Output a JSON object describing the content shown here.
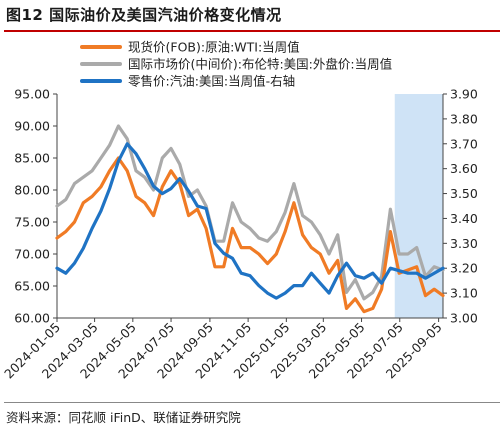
{
  "title": "图12  国际油价及美国汽油价格变化情况",
  "source": "资料来源：同花顺 iFinD、联储证券研究院",
  "chart_data": {
    "type": "line",
    "title": "图12  国际油价及美国汽油价格变化情况",
    "x_tick_labels": [
      "2024-01-05",
      "2024-03-05",
      "2024-05-05",
      "2024-07-05",
      "2024-09-05",
      "2024-11-05",
      "2025-01-05",
      "2025-03-05",
      "2025-05-05",
      "2025-07-05",
      "2025-09-05"
    ],
    "x_start": "2024-01-05",
    "x_end": "2025-09-12",
    "y_left": {
      "ylim": [
        60,
        95
      ],
      "ticks": [
        "60.00",
        "65.00",
        "70.00",
        "75.00",
        "80.00",
        "85.00",
        "90.00",
        "95.00"
      ]
    },
    "y_right": {
      "ylim": [
        3.0,
        3.9
      ],
      "ticks": [
        "3.00",
        "3.10",
        "3.20",
        "3.30",
        "3.40",
        "3.50",
        "3.60",
        "3.70",
        "3.80",
        "3.90"
      ]
    },
    "shaded_range": [
      "2025-06-27",
      "2025-09-12"
    ],
    "shade_color": "#cfe3f6",
    "legend_position": "top-left",
    "series": [
      {
        "name": "现货价(FOB):原油:WTI:当周值",
        "axis": "left",
        "color": "#f07b25",
        "points": [
          [
            "2024-01-05",
            72.5
          ],
          [
            "2024-01-19",
            73.5
          ],
          [
            "2024-02-02",
            75
          ],
          [
            "2024-02-16",
            78
          ],
          [
            "2024-03-01",
            79
          ],
          [
            "2024-03-15",
            80.5
          ],
          [
            "2024-03-29",
            83
          ],
          [
            "2024-04-12",
            85
          ],
          [
            "2024-04-26",
            83
          ],
          [
            "2024-05-10",
            79
          ],
          [
            "2024-05-24",
            78
          ],
          [
            "2024-06-07",
            76
          ],
          [
            "2024-06-21",
            80.5
          ],
          [
            "2024-07-05",
            83
          ],
          [
            "2024-07-19",
            81
          ],
          [
            "2024-08-02",
            76
          ],
          [
            "2024-08-16",
            77
          ],
          [
            "2024-08-30",
            74
          ],
          [
            "2024-09-13",
            68
          ],
          [
            "2024-09-27",
            68
          ],
          [
            "2024-10-11",
            74
          ],
          [
            "2024-10-25",
            71
          ],
          [
            "2024-11-08",
            71
          ],
          [
            "2024-11-22",
            70
          ],
          [
            "2024-12-06",
            68.5
          ],
          [
            "2024-12-20",
            70
          ],
          [
            "2025-01-03",
            73.5
          ],
          [
            "2025-01-17",
            78
          ],
          [
            "2025-01-31",
            73
          ],
          [
            "2025-02-14",
            71
          ],
          [
            "2025-02-28",
            70
          ],
          [
            "2025-03-14",
            67
          ],
          [
            "2025-03-28",
            69
          ],
          [
            "2025-04-11",
            61.5
          ],
          [
            "2025-04-25",
            63
          ],
          [
            "2025-05-09",
            61
          ],
          [
            "2025-05-23",
            61.5
          ],
          [
            "2025-06-06",
            64.5
          ],
          [
            "2025-06-20",
            73.5
          ],
          [
            "2025-07-04",
            67
          ],
          [
            "2025-07-18",
            67.5
          ],
          [
            "2025-08-01",
            68
          ],
          [
            "2025-08-15",
            63.5
          ],
          [
            "2025-08-29",
            64.5
          ],
          [
            "2025-09-12",
            63.5
          ]
        ]
      },
      {
        "name": "国际市场价(中间价):布伦特:美国:外盘价:当周值",
        "axis": "left",
        "color": "#aaaaaa",
        "points": [
          [
            "2024-01-05",
            77.5
          ],
          [
            "2024-01-19",
            78.5
          ],
          [
            "2024-02-02",
            81
          ],
          [
            "2024-02-16",
            82
          ],
          [
            "2024-03-01",
            83
          ],
          [
            "2024-03-15",
            85
          ],
          [
            "2024-03-29",
            87
          ],
          [
            "2024-04-12",
            90
          ],
          [
            "2024-04-26",
            88
          ],
          [
            "2024-05-10",
            83
          ],
          [
            "2024-05-24",
            82
          ],
          [
            "2024-06-07",
            80
          ],
          [
            "2024-06-21",
            85
          ],
          [
            "2024-07-05",
            86.5
          ],
          [
            "2024-07-19",
            84
          ],
          [
            "2024-08-02",
            79
          ],
          [
            "2024-08-16",
            80
          ],
          [
            "2024-08-30",
            77.5
          ],
          [
            "2024-09-13",
            72
          ],
          [
            "2024-09-27",
            72
          ],
          [
            "2024-10-11",
            78
          ],
          [
            "2024-10-25",
            75
          ],
          [
            "2024-11-08",
            74
          ],
          [
            "2024-11-22",
            72.5
          ],
          [
            "2024-12-06",
            72
          ],
          [
            "2024-12-20",
            73.5
          ],
          [
            "2025-01-03",
            76.5
          ],
          [
            "2025-01-17",
            81
          ],
          [
            "2025-01-31",
            76
          ],
          [
            "2025-02-14",
            75
          ],
          [
            "2025-02-28",
            73
          ],
          [
            "2025-03-14",
            70
          ],
          [
            "2025-03-28",
            73
          ],
          [
            "2025-04-11",
            64
          ],
          [
            "2025-04-25",
            66
          ],
          [
            "2025-05-09",
            63
          ],
          [
            "2025-05-23",
            64
          ],
          [
            "2025-06-06",
            66.5
          ],
          [
            "2025-06-20",
            77
          ],
          [
            "2025-07-04",
            70
          ],
          [
            "2025-07-18",
            70
          ],
          [
            "2025-08-01",
            71
          ],
          [
            "2025-08-15",
            66.5
          ],
          [
            "2025-08-29",
            68
          ],
          [
            "2025-09-12",
            67.5
          ]
        ]
      },
      {
        "name": "零售价:汽油:美国:当周值-右轴",
        "axis": "right",
        "color": "#1f73c4",
        "points": [
          [
            "2024-01-05",
            3.2
          ],
          [
            "2024-01-19",
            3.18
          ],
          [
            "2024-02-02",
            3.22
          ],
          [
            "2024-02-16",
            3.28
          ],
          [
            "2024-03-01",
            3.36
          ],
          [
            "2024-03-15",
            3.43
          ],
          [
            "2024-03-29",
            3.52
          ],
          [
            "2024-04-12",
            3.63
          ],
          [
            "2024-04-26",
            3.7
          ],
          [
            "2024-05-10",
            3.66
          ],
          [
            "2024-05-24",
            3.6
          ],
          [
            "2024-06-07",
            3.53
          ],
          [
            "2024-06-21",
            3.5
          ],
          [
            "2024-07-05",
            3.52
          ],
          [
            "2024-07-19",
            3.56
          ],
          [
            "2024-08-02",
            3.51
          ],
          [
            "2024-08-16",
            3.45
          ],
          [
            "2024-08-30",
            3.44
          ],
          [
            "2024-09-13",
            3.3
          ],
          [
            "2024-09-27",
            3.26
          ],
          [
            "2024-10-11",
            3.24
          ],
          [
            "2024-10-25",
            3.18
          ],
          [
            "2024-11-08",
            3.17
          ],
          [
            "2024-11-22",
            3.13
          ],
          [
            "2024-12-06",
            3.1
          ],
          [
            "2024-12-20",
            3.08
          ],
          [
            "2025-01-03",
            3.1
          ],
          [
            "2025-01-17",
            3.13
          ],
          [
            "2025-01-31",
            3.13
          ],
          [
            "2025-02-14",
            3.18
          ],
          [
            "2025-02-28",
            3.14
          ],
          [
            "2025-03-14",
            3.1
          ],
          [
            "2025-03-28",
            3.17
          ],
          [
            "2025-04-11",
            3.22
          ],
          [
            "2025-04-25",
            3.17
          ],
          [
            "2025-05-09",
            3.16
          ],
          [
            "2025-05-23",
            3.18
          ],
          [
            "2025-06-06",
            3.14
          ],
          [
            "2025-06-20",
            3.2
          ],
          [
            "2025-07-04",
            3.19
          ],
          [
            "2025-07-18",
            3.18
          ],
          [
            "2025-08-01",
            3.18
          ],
          [
            "2025-08-15",
            3.16
          ],
          [
            "2025-08-29",
            3.18
          ],
          [
            "2025-09-12",
            3.2
          ]
        ]
      }
    ]
  }
}
